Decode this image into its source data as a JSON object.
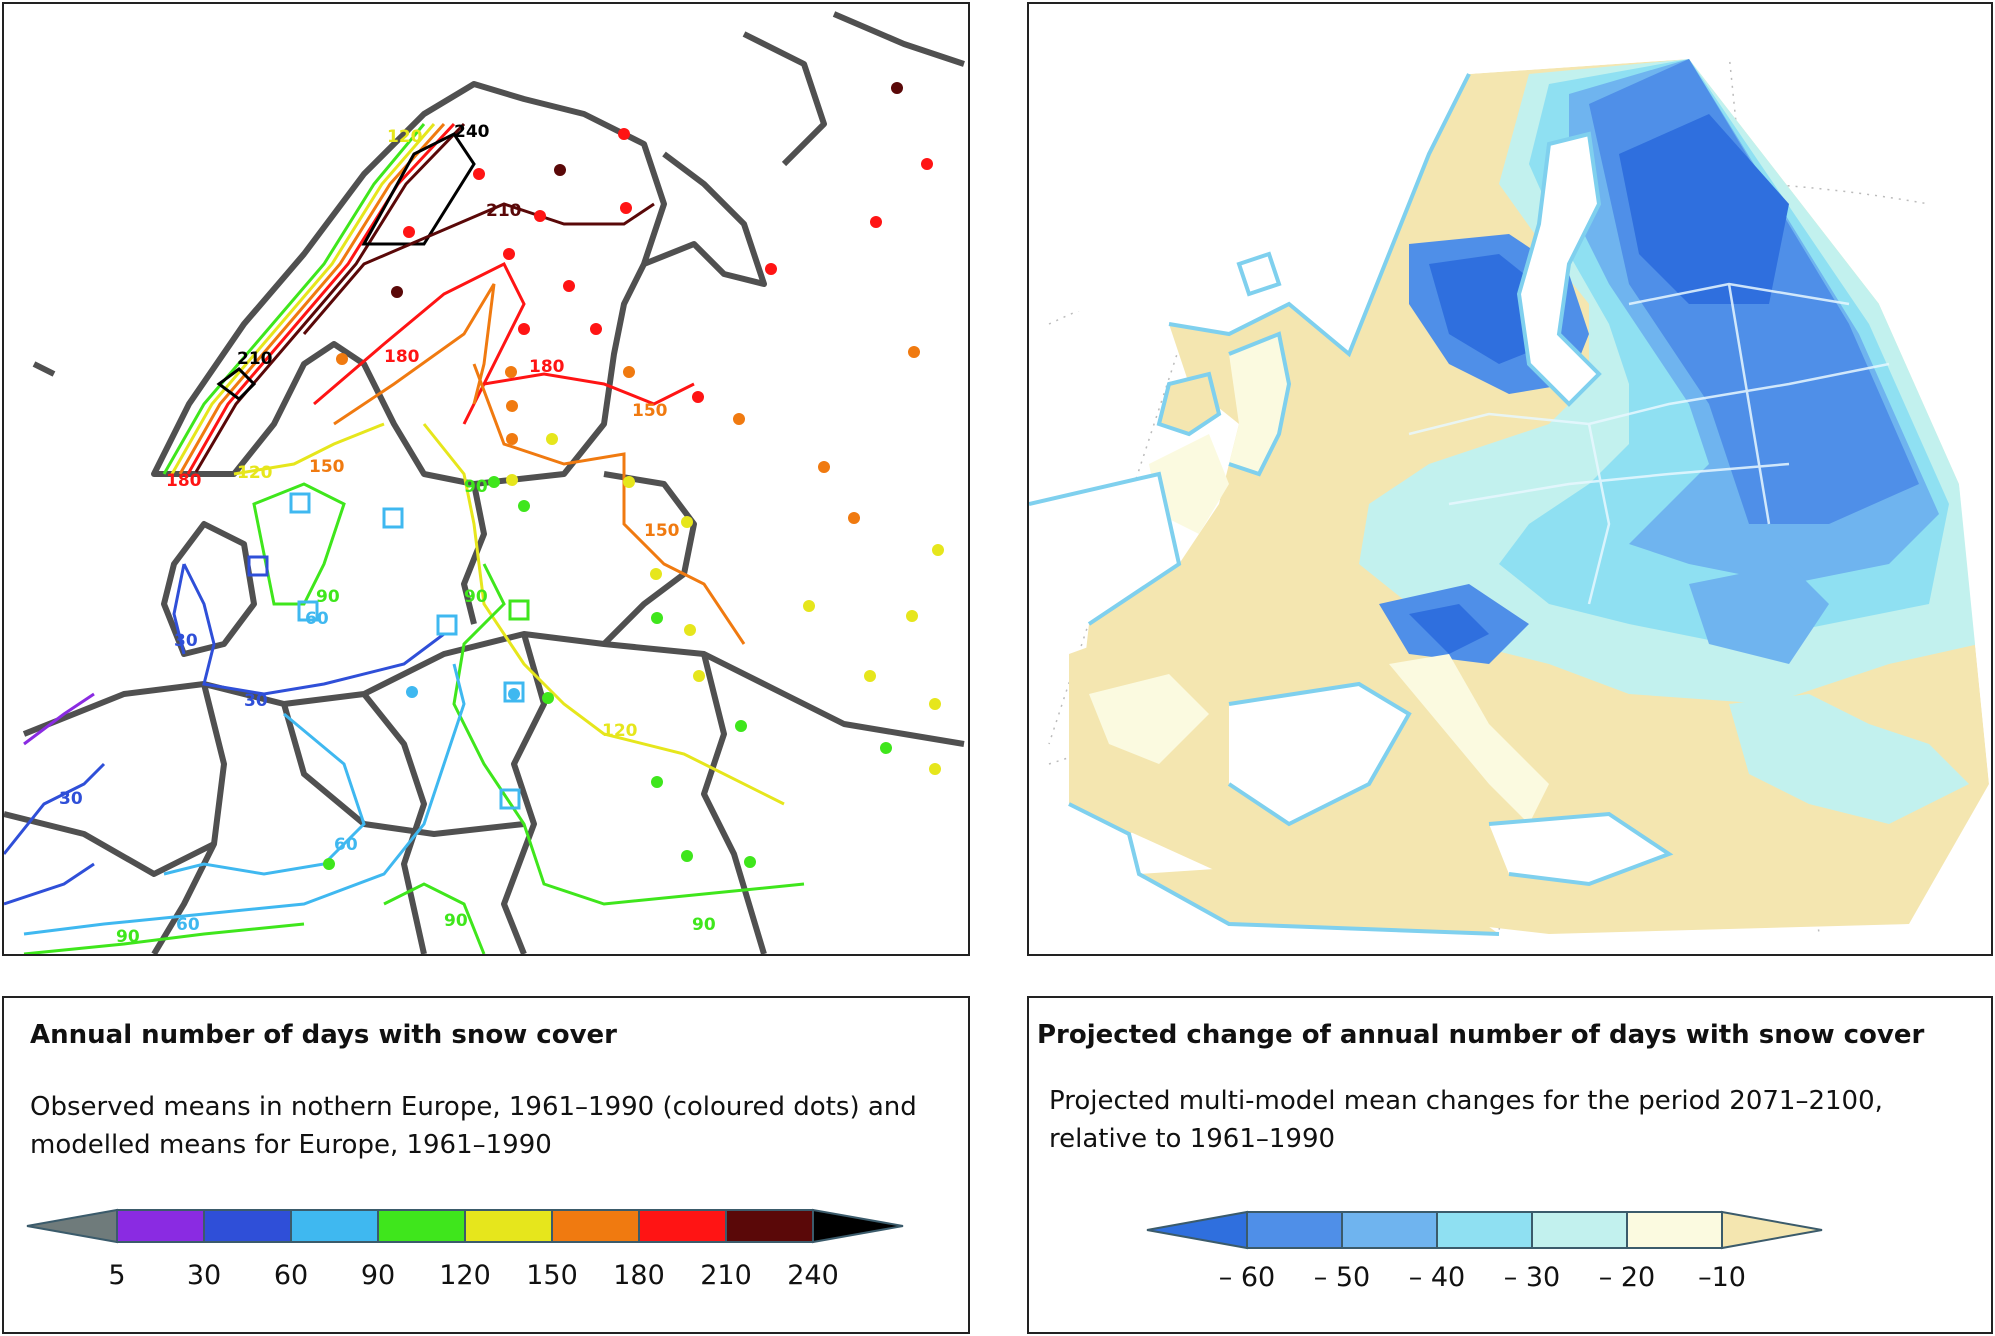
{
  "left_panel": {
    "contour_labels": [
      "240",
      "120",
      "210",
      "210",
      "180",
      "180",
      "150",
      "180",
      "150",
      "150",
      "120",
      "90",
      "60",
      "90",
      "30",
      "30",
      "30",
      "60",
      "60",
      "90",
      "120",
      "90",
      "90",
      "90"
    ],
    "legend": {
      "title": "Annual number of days with snow cover",
      "description": "Observed means in nothern Europe, 1961–1990 (coloured dots) and modelled means for Europe, 1961–1990",
      "colors": [
        "#6f7b7b",
        "#8a2be2",
        "#2f4fd8",
        "#3fb8f0",
        "#3fe61c",
        "#e6e61c",
        "#f07a10",
        "#ff1414",
        "#5a0808",
        "#000000"
      ],
      "ticks": [
        "5",
        "30",
        "60",
        "90",
        "120",
        "150",
        "180",
        "210",
        "240"
      ]
    }
  },
  "right_panel": {
    "legend": {
      "title": "Projected change of annual number of days with snow cover",
      "description": "Projected multi-model mean changes for the period 2071–2100, relative to 1961–1990",
      "colors": [
        "#2f6fde",
        "#4f8fe8",
        "#6fb4ef",
        "#8fe0f2",
        "#c2f1ee",
        "#fbfae0",
        "#f4e6b0"
      ],
      "ticks": [
        "– 60",
        "– 50",
        "– 40",
        "– 30",
        "– 20",
        "–10"
      ]
    }
  }
}
